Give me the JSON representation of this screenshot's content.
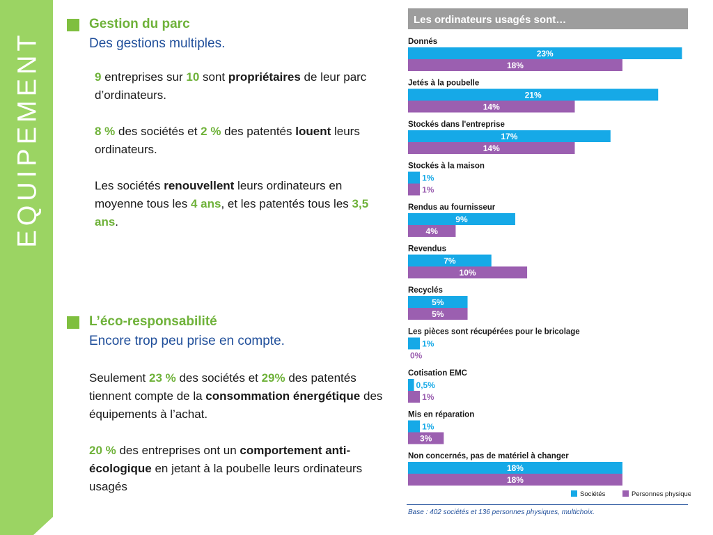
{
  "sidebar": {
    "title": "EQUIPEMENT"
  },
  "section1": {
    "title": "Gestion du parc",
    "subtitle": "Des gestions multiples.",
    "p1": {
      "n1": "9",
      "t1": " entreprises sur ",
      "n2": "10",
      "t2": " sont ",
      "bold": "propriétaires",
      "t3": " de leur parc d’ordinateurs."
    },
    "p2": {
      "n1": "8 %",
      "t1": " des sociétés et ",
      "n2": "2 %",
      "t2": " des patentés ",
      "bold": "louent",
      "t3": " leurs ordinateurs."
    },
    "p3": {
      "t1": "Les sociétés ",
      "bold": "renouvellent",
      "t2": " leurs ordinateurs en moyenne tous les ",
      "n1": "4 ans",
      "t3": ", et les patentés tous les ",
      "n2": "3,5 ans",
      "t4": "."
    }
  },
  "section2": {
    "title": "L’éco-responsabilité",
    "subtitle": "Encore trop peu prise en compte.",
    "p1": {
      "t1": "Seulement ",
      "n1": "23 %",
      "t2": " des sociétés et ",
      "n2": "29%",
      "t3": " des patentés tiennent compte de la ",
      "bold": "consommation énergétique",
      "t4": " des équipements à l’achat."
    },
    "p2": {
      "n1": "20 %",
      "t1": " des entreprises ont un ",
      "bold": "comportement anti-écologique",
      "t2": " en jetant à la poubelle leurs ordinateurs usagés"
    }
  },
  "chart_data": {
    "type": "bar",
    "orientation": "horizontal",
    "title": "Les ordinateurs usagés sont…",
    "categories": [
      "Donnés",
      "Jetés à la poubelle",
      "Stockés dans l'entreprise",
      "Stockés à la maison",
      "Rendus au fournisseur",
      "Revendus",
      "Recyclés",
      "Les pièces sont récupérées pour le bricolage",
      "Cotisation EMC",
      "Mis en réparation",
      "Non concernés, pas de matériel à changer"
    ],
    "series": [
      {
        "name": "Sociétés",
        "color": "#16a9e7",
        "values": [
          23,
          21,
          17,
          1,
          9,
          7,
          5,
          1,
          0.5,
          1,
          18
        ],
        "labels": [
          "23%",
          "21%",
          "17%",
          "1%",
          "9%",
          "7%",
          "5%",
          "1%",
          "0,5%",
          "1%",
          "18%"
        ]
      },
      {
        "name": "Personnes physiques",
        "color": "#9b5fb0",
        "values": [
          18,
          14,
          14,
          1,
          4,
          10,
          5,
          0,
          1,
          3,
          18
        ],
        "labels": [
          "18%",
          "14%",
          "14%",
          "1%",
          "4%",
          "10%",
          "5%",
          "0%",
          "1%",
          "3%",
          "18%"
        ]
      }
    ],
    "legend_position": "bottom-right",
    "note": "Base : 402 sociétés et 136 personnes physiques, multichoix."
  },
  "colors": {
    "sidebar": "#9bd463",
    "accent_green": "#6fb23a",
    "subtitle_blue": "#1f4e9a",
    "title_bar": "#9d9d9d"
  }
}
